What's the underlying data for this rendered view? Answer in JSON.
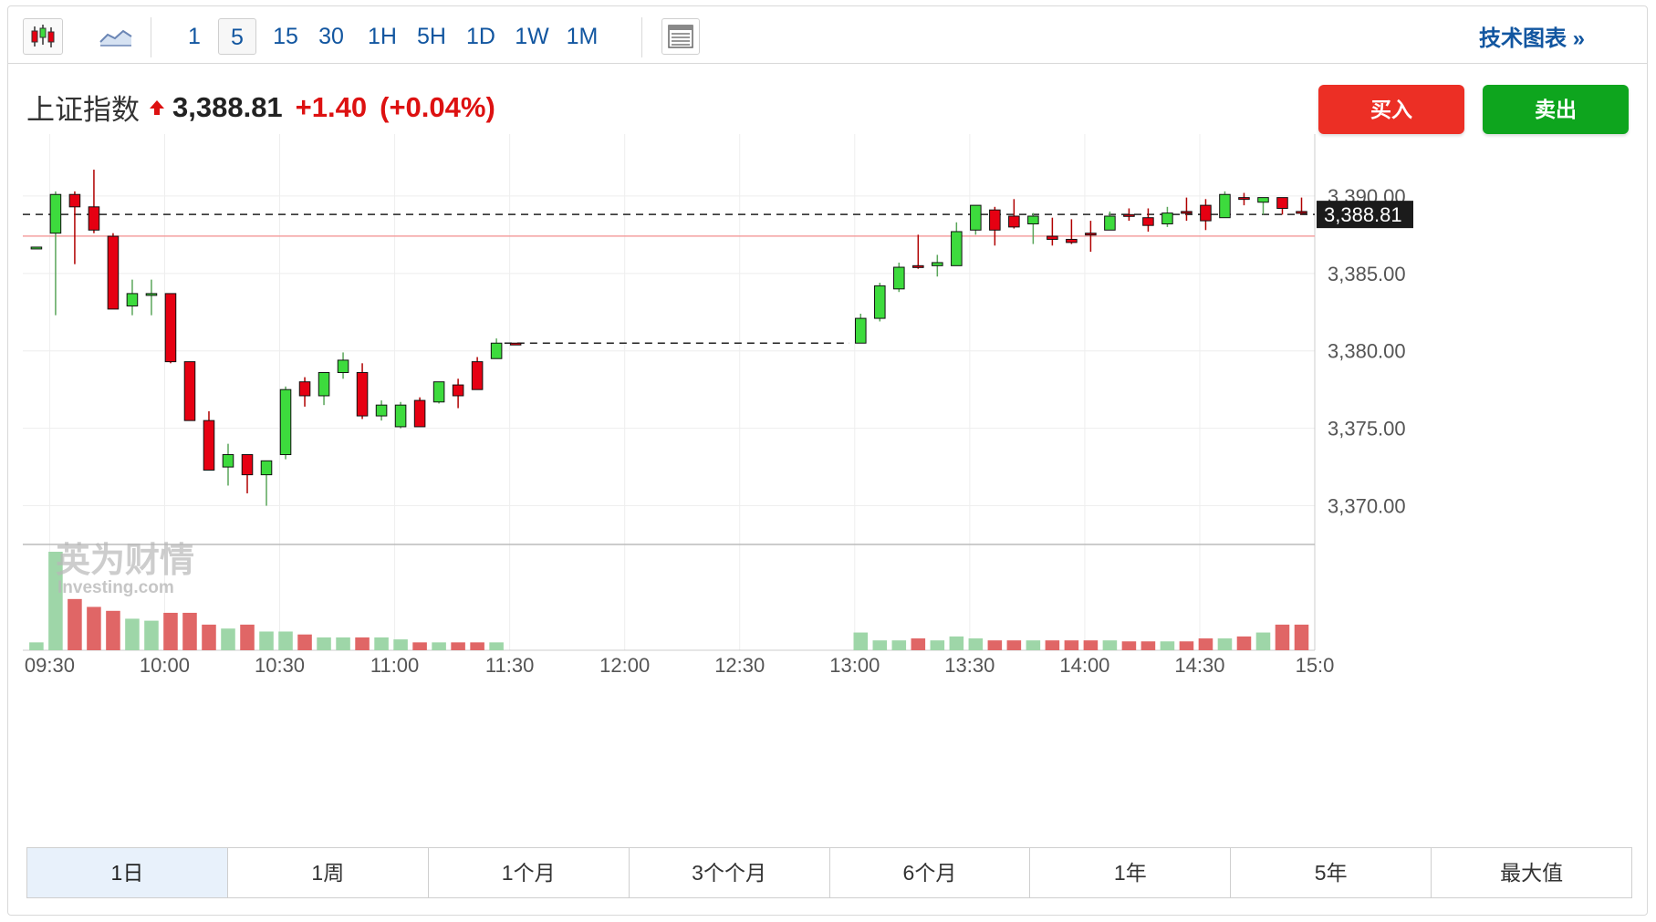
{
  "toolbar": {
    "timeframes": [
      "1",
      "5",
      "15",
      "30",
      "1H",
      "5H",
      "1D",
      "1W",
      "1M"
    ],
    "active_timeframe": "5",
    "tech_link": "技术图表 »"
  },
  "quote": {
    "name": "上证指数",
    "price": "3,388.81",
    "change": "+1.40",
    "change_pct": "(+0.04%)",
    "direction": "up",
    "up_color": "#dd1111"
  },
  "buttons": {
    "buy": "买入",
    "sell": "卖出",
    "buy_color": "#ec2f25",
    "sell_color": "#0ea51e"
  },
  "watermark": {
    "cn": "英为财情",
    "en": "Investing.com"
  },
  "ranges": [
    "1日",
    "1周",
    "1个月",
    "3个个月",
    "6个月",
    "1年",
    "5年",
    "最大值"
  ],
  "active_range": "1日",
  "chart_data": {
    "type": "candlestick",
    "interval_minutes": 5,
    "current_price": 3388.81,
    "current_price_label": "3,388.81",
    "prev_close": 3387.41,
    "y_ticks": [
      "3,390.00",
      "3,385.00",
      "3,380.00",
      "3,375.00",
      "3,370.00"
    ],
    "y_tick_values": [
      3390,
      3385,
      3380,
      3375,
      3370
    ],
    "ylim": [
      3367.5,
      3394
    ],
    "x_ticks": [
      "09:30",
      "10:00",
      "10:30",
      "11:00",
      "11:30",
      "12:00",
      "12:30",
      "13:00",
      "13:30",
      "14:00",
      "14:30",
      "15:0"
    ],
    "x_tick_times": [
      "09:30",
      "10:00",
      "10:30",
      "11:00",
      "11:30",
      "12:00",
      "12:30",
      "13:00",
      "13:30",
      "14:00",
      "14:30",
      "15:00"
    ],
    "xlim": [
      "09:23",
      "15:00"
    ],
    "colors": {
      "up": "#e60012",
      "down": "#3ddb3d",
      "vol_up": "#e06666",
      "vol_down": "#9ed6a8"
    },
    "volume_note": "relative volume, max = 1",
    "candles": [
      {
        "t": "09:25",
        "o": 3386.7,
        "h": 3386.7,
        "l": 3386.7,
        "c": 3386.7,
        "v": 0.08,
        "dir": "down"
      },
      {
        "t": "09:30",
        "o": 3387.6,
        "h": 3390.3,
        "l": 3382.3,
        "c": 3390.1,
        "v": 1.0,
        "dir": "down"
      },
      {
        "t": "09:35",
        "o": 3390.1,
        "h": 3390.3,
        "l": 3385.6,
        "c": 3389.3,
        "v": 0.52,
        "dir": "up"
      },
      {
        "t": "09:40",
        "o": 3389.3,
        "h": 3391.7,
        "l": 3387.6,
        "c": 3387.8,
        "v": 0.44,
        "dir": "up"
      },
      {
        "t": "09:45",
        "o": 3387.4,
        "h": 3387.6,
        "l": 3382.7,
        "c": 3382.7,
        "v": 0.4,
        "dir": "up"
      },
      {
        "t": "09:50",
        "o": 3382.9,
        "h": 3384.6,
        "l": 3382.3,
        "c": 3383.7,
        "v": 0.32,
        "dir": "down"
      },
      {
        "t": "09:55",
        "o": 3383.7,
        "h": 3384.6,
        "l": 3382.3,
        "c": 3383.6,
        "v": 0.3,
        "dir": "down"
      },
      {
        "t": "10:00",
        "o": 3383.7,
        "h": 3383.7,
        "l": 3379.2,
        "c": 3379.3,
        "v": 0.38,
        "dir": "up"
      },
      {
        "t": "10:05",
        "o": 3379.3,
        "h": 3379.3,
        "l": 3375.5,
        "c": 3375.5,
        "v": 0.38,
        "dir": "up"
      },
      {
        "t": "10:10",
        "o": 3375.5,
        "h": 3376.1,
        "l": 3372.3,
        "c": 3372.3,
        "v": 0.26,
        "dir": "up"
      },
      {
        "t": "10:15",
        "o": 3372.5,
        "h": 3374.0,
        "l": 3371.3,
        "c": 3373.3,
        "v": 0.22,
        "dir": "down"
      },
      {
        "t": "10:20",
        "o": 3373.3,
        "h": 3373.3,
        "l": 3370.8,
        "c": 3372.0,
        "v": 0.26,
        "dir": "up"
      },
      {
        "t": "10:25",
        "o": 3372.0,
        "h": 3372.9,
        "l": 3370.0,
        "c": 3372.9,
        "v": 0.19,
        "dir": "down"
      },
      {
        "t": "10:30",
        "o": 3373.3,
        "h": 3377.7,
        "l": 3373.0,
        "c": 3377.5,
        "v": 0.19,
        "dir": "down"
      },
      {
        "t": "10:35",
        "o": 3377.1,
        "h": 3378.3,
        "l": 3376.4,
        "c": 3378.0,
        "v": 0.16,
        "dir": "up"
      },
      {
        "t": "10:40",
        "o": 3377.1,
        "h": 3378.6,
        "l": 3376.5,
        "c": 3378.6,
        "v": 0.13,
        "dir": "down"
      },
      {
        "t": "10:45",
        "o": 3378.6,
        "h": 3379.9,
        "l": 3378.2,
        "c": 3379.4,
        "v": 0.13,
        "dir": "down"
      },
      {
        "t": "10:50",
        "o": 3378.6,
        "h": 3379.2,
        "l": 3375.6,
        "c": 3375.8,
        "v": 0.13,
        "dir": "up"
      },
      {
        "t": "10:55",
        "o": 3375.8,
        "h": 3376.8,
        "l": 3375.5,
        "c": 3376.5,
        "v": 0.13,
        "dir": "down"
      },
      {
        "t": "11:00",
        "o": 3376.5,
        "h": 3376.7,
        "l": 3375.0,
        "c": 3375.1,
        "v": 0.11,
        "dir": "down"
      },
      {
        "t": "11:05",
        "o": 3375.1,
        "h": 3377.0,
        "l": 3375.1,
        "c": 3376.8,
        "v": 0.08,
        "dir": "up"
      },
      {
        "t": "11:10",
        "o": 3376.7,
        "h": 3378.0,
        "l": 3376.6,
        "c": 3378.0,
        "v": 0.08,
        "dir": "down"
      },
      {
        "t": "11:15",
        "o": 3377.1,
        "h": 3378.2,
        "l": 3376.3,
        "c": 3377.8,
        "v": 0.08,
        "dir": "up"
      },
      {
        "t": "11:20",
        "o": 3377.5,
        "h": 3379.6,
        "l": 3377.5,
        "c": 3379.3,
        "v": 0.08,
        "dir": "up"
      },
      {
        "t": "11:25",
        "o": 3379.5,
        "h": 3380.8,
        "l": 3379.5,
        "c": 3380.5,
        "v": 0.08,
        "dir": "down"
      },
      {
        "t": "11:30",
        "o": 3380.5,
        "h": 3380.5,
        "l": 3380.5,
        "c": 3380.5,
        "v": 0.0,
        "dir": "up"
      },
      {
        "t": "13:00",
        "o": 3380.5,
        "h": 3382.4,
        "l": 3380.5,
        "c": 3382.1,
        "v": 0.18,
        "dir": "down"
      },
      {
        "t": "13:05",
        "o": 3382.1,
        "h": 3384.4,
        "l": 3381.9,
        "c": 3384.2,
        "v": 0.1,
        "dir": "down"
      },
      {
        "t": "13:10",
        "o": 3384.0,
        "h": 3385.7,
        "l": 3383.8,
        "c": 3385.4,
        "v": 0.1,
        "dir": "down"
      },
      {
        "t": "13:15",
        "o": 3385.5,
        "h": 3387.5,
        "l": 3385.3,
        "c": 3385.5,
        "v": 0.12,
        "dir": "up"
      },
      {
        "t": "13:20",
        "o": 3385.5,
        "h": 3386.2,
        "l": 3384.8,
        "c": 3385.7,
        "v": 0.1,
        "dir": "down"
      },
      {
        "t": "13:25",
        "o": 3385.5,
        "h": 3388.3,
        "l": 3385.5,
        "c": 3387.7,
        "v": 0.14,
        "dir": "down"
      },
      {
        "t": "13:30",
        "o": 3387.8,
        "h": 3389.4,
        "l": 3387.5,
        "c": 3389.4,
        "v": 0.12,
        "dir": "down"
      },
      {
        "t": "13:35",
        "o": 3389.1,
        "h": 3389.3,
        "l": 3386.8,
        "c": 3387.8,
        "v": 0.1,
        "dir": "up"
      },
      {
        "t": "13:40",
        "o": 3388.7,
        "h": 3389.8,
        "l": 3387.9,
        "c": 3388.0,
        "v": 0.1,
        "dir": "up"
      },
      {
        "t": "13:45",
        "o": 3388.2,
        "h": 3388.9,
        "l": 3386.9,
        "c": 3388.7,
        "v": 0.1,
        "dir": "down"
      },
      {
        "t": "13:50",
        "o": 3387.2,
        "h": 3388.6,
        "l": 3386.8,
        "c": 3387.4,
        "v": 0.1,
        "dir": "up"
      },
      {
        "t": "13:55",
        "o": 3387.0,
        "h": 3388.5,
        "l": 3386.9,
        "c": 3387.2,
        "v": 0.1,
        "dir": "up"
      },
      {
        "t": "14:00",
        "o": 3387.6,
        "h": 3388.4,
        "l": 3386.4,
        "c": 3387.6,
        "v": 0.1,
        "dir": "up"
      },
      {
        "t": "14:05",
        "o": 3387.8,
        "h": 3389.0,
        "l": 3387.8,
        "c": 3388.7,
        "v": 0.1,
        "dir": "down"
      },
      {
        "t": "14:10",
        "o": 3388.8,
        "h": 3389.2,
        "l": 3388.4,
        "c": 3388.7,
        "v": 0.09,
        "dir": "up"
      },
      {
        "t": "14:15",
        "o": 3388.6,
        "h": 3389.2,
        "l": 3387.7,
        "c": 3388.1,
        "v": 0.09,
        "dir": "up"
      },
      {
        "t": "14:20",
        "o": 3388.2,
        "h": 3389.3,
        "l": 3388.0,
        "c": 3388.9,
        "v": 0.09,
        "dir": "down"
      },
      {
        "t": "14:25",
        "o": 3389.0,
        "h": 3389.9,
        "l": 3388.4,
        "c": 3389.0,
        "v": 0.09,
        "dir": "up"
      },
      {
        "t": "14:30",
        "o": 3388.4,
        "h": 3389.8,
        "l": 3387.8,
        "c": 3389.4,
        "v": 0.12,
        "dir": "up"
      },
      {
        "t": "14:35",
        "o": 3388.6,
        "h": 3390.3,
        "l": 3388.6,
        "c": 3390.1,
        "v": 0.12,
        "dir": "down"
      },
      {
        "t": "14:40",
        "o": 3389.9,
        "h": 3390.2,
        "l": 3389.4,
        "c": 3389.9,
        "v": 0.14,
        "dir": "up"
      },
      {
        "t": "14:45",
        "o": 3389.6,
        "h": 3389.9,
        "l": 3388.8,
        "c": 3389.9,
        "v": 0.18,
        "dir": "down"
      },
      {
        "t": "14:50",
        "o": 3389.9,
        "h": 3389.9,
        "l": 3388.8,
        "c": 3389.2,
        "v": 0.26,
        "dir": "up"
      },
      {
        "t": "14:55",
        "o": 3389.0,
        "h": 3389.9,
        "l": 3388.8,
        "c": 3388.9,
        "v": 0.26,
        "dir": "up"
      }
    ]
  }
}
